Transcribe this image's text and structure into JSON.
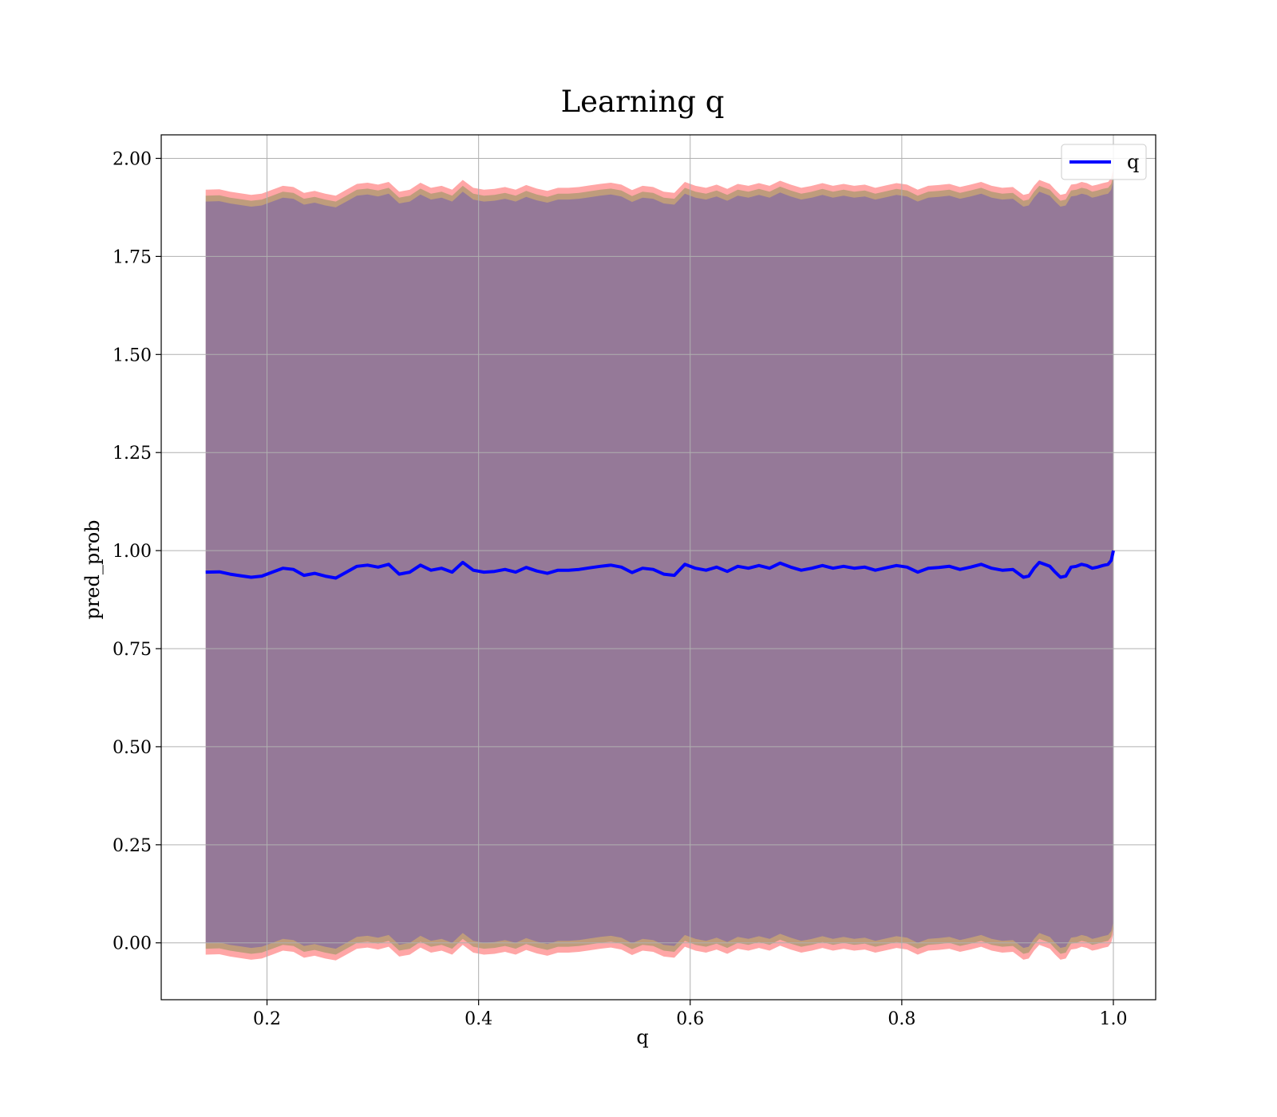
{
  "chart_data": {
    "type": "line",
    "title": "Learning q",
    "xlabel": "q",
    "ylabel": "pred_prob",
    "xlim": [
      0.1,
      1.04
    ],
    "ylim": [
      -0.145,
      2.06
    ],
    "x_ticks": [
      "0.2",
      "0.4",
      "0.6",
      "0.8",
      "1.0"
    ],
    "y_ticks": [
      "0.00",
      "0.25",
      "0.50",
      "0.75",
      "1.00",
      "1.25",
      "1.50",
      "1.75",
      "2.00"
    ],
    "grid": true,
    "legend": {
      "position": "upper right",
      "entries": [
        "q"
      ]
    },
    "series": [
      {
        "name": "q",
        "color": "#0000ff",
        "x": [
          0.142,
          0.155,
          0.165,
          0.175,
          0.185,
          0.195,
          0.205,
          0.215,
          0.225,
          0.235,
          0.245,
          0.255,
          0.265,
          0.275,
          0.285,
          0.295,
          0.305,
          0.315,
          0.325,
          0.335,
          0.345,
          0.355,
          0.365,
          0.375,
          0.385,
          0.395,
          0.405,
          0.415,
          0.425,
          0.435,
          0.445,
          0.455,
          0.465,
          0.475,
          0.485,
          0.495,
          0.505,
          0.515,
          0.525,
          0.535,
          0.545,
          0.555,
          0.565,
          0.575,
          0.585,
          0.595,
          0.605,
          0.615,
          0.625,
          0.635,
          0.645,
          0.655,
          0.665,
          0.675,
          0.685,
          0.695,
          0.705,
          0.715,
          0.725,
          0.735,
          0.745,
          0.755,
          0.765,
          0.775,
          0.785,
          0.795,
          0.805,
          0.815,
          0.825,
          0.835,
          0.845,
          0.855,
          0.865,
          0.875,
          0.885,
          0.895,
          0.905,
          0.915,
          0.92,
          0.925,
          0.93,
          0.935,
          0.94,
          0.945,
          0.95,
          0.955,
          0.96,
          0.965,
          0.97,
          0.975,
          0.98,
          0.985,
          0.99,
          0.995,
          0.998,
          1.0
        ],
        "y": [
          0.945,
          0.946,
          0.94,
          0.936,
          0.932,
          0.935,
          0.945,
          0.955,
          0.952,
          0.937,
          0.942,
          0.935,
          0.93,
          0.945,
          0.96,
          0.963,
          0.958,
          0.965,
          0.94,
          0.945,
          0.963,
          0.95,
          0.955,
          0.945,
          0.97,
          0.95,
          0.945,
          0.947,
          0.952,
          0.945,
          0.957,
          0.948,
          0.942,
          0.95,
          0.95,
          0.952,
          0.956,
          0.96,
          0.963,
          0.958,
          0.944,
          0.955,
          0.952,
          0.94,
          0.937,
          0.965,
          0.955,
          0.95,
          0.958,
          0.947,
          0.96,
          0.955,
          0.962,
          0.955,
          0.968,
          0.958,
          0.95,
          0.955,
          0.962,
          0.955,
          0.96,
          0.955,
          0.958,
          0.95,
          0.956,
          0.962,
          0.958,
          0.945,
          0.955,
          0.957,
          0.96,
          0.952,
          0.958,
          0.965,
          0.955,
          0.95,
          0.952,
          0.932,
          0.935,
          0.955,
          0.97,
          0.965,
          0.96,
          0.945,
          0.932,
          0.935,
          0.958,
          0.96,
          0.965,
          0.962,
          0.955,
          0.958,
          0.962,
          0.965,
          0.975,
          1.0
        ]
      }
    ],
    "bands": [
      {
        "color": "#ff0000",
        "opacity": 0.35,
        "offset": 0.975
      },
      {
        "color": "#008000",
        "opacity": 0.25,
        "offset": 0.96
      },
      {
        "color": "#0000ff",
        "opacity": 0.22,
        "offset": 0.945
      }
    ]
  }
}
